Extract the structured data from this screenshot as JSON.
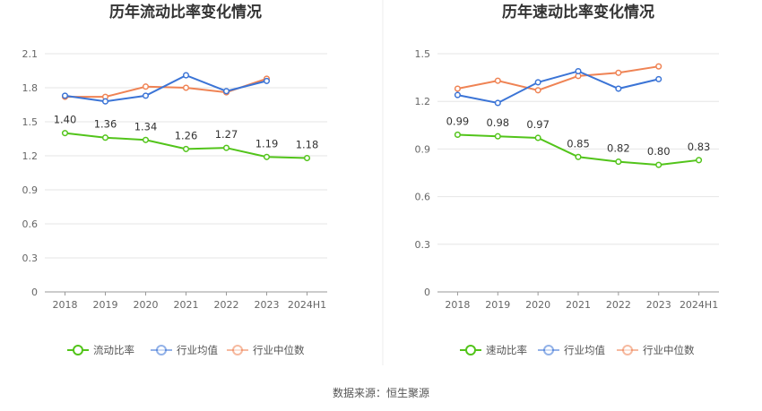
{
  "source": "数据来源：恒生聚源",
  "colors": {
    "company": "#52c41a",
    "industry_avg": "#3b74d6",
    "industry_median": "#ef8354"
  },
  "chart_data": [
    {
      "type": "line",
      "title": "历年流动比率变化情况",
      "categories": [
        "2018",
        "2019",
        "2020",
        "2021",
        "2022",
        "2023",
        "2024H1"
      ],
      "yticks": [
        "0",
        "0.3",
        "0.6",
        "0.9",
        "1.2",
        "1.5",
        "1.8",
        "2.1"
      ],
      "ylim": [
        0,
        2.1
      ],
      "grid": true,
      "legend_position": "bottom",
      "series": [
        {
          "name": "流动比率",
          "color": "#52c41a",
          "values": [
            1.4,
            1.36,
            1.34,
            1.26,
            1.27,
            1.19,
            1.18
          ],
          "labels": [
            "1.40",
            "1.36",
            "1.34",
            "1.26",
            "1.27",
            "1.19",
            "1.18"
          ]
        },
        {
          "name": "行业均值",
          "color": "#3b74d6",
          "values": [
            1.73,
            1.68,
            1.73,
            1.91,
            1.77,
            1.86,
            null
          ]
        },
        {
          "name": "行业中位数",
          "color": "#ef8354",
          "values": [
            1.72,
            1.72,
            1.81,
            1.8,
            1.76,
            1.88,
            null
          ]
        }
      ]
    },
    {
      "type": "line",
      "title": "历年速动比率变化情况",
      "categories": [
        "2018",
        "2019",
        "2020",
        "2021",
        "2022",
        "2023",
        "2024H1"
      ],
      "yticks": [
        "0",
        "0.3",
        "0.6",
        "0.9",
        "1.2",
        "1.5"
      ],
      "ylim": [
        0,
        1.5
      ],
      "grid": true,
      "legend_position": "bottom",
      "series": [
        {
          "name": "速动比率",
          "color": "#52c41a",
          "values": [
            0.99,
            0.98,
            0.97,
            0.85,
            0.82,
            0.8,
            0.83
          ],
          "labels": [
            "0.99",
            "0.98",
            "0.97",
            "0.85",
            "0.82",
            "0.80",
            "0.83"
          ]
        },
        {
          "name": "行业均值",
          "color": "#3b74d6",
          "values": [
            1.24,
            1.19,
            1.32,
            1.39,
            1.28,
            1.34,
            null
          ]
        },
        {
          "name": "行业中位数",
          "color": "#ef8354",
          "values": [
            1.28,
            1.33,
            1.27,
            1.36,
            1.38,
            1.42,
            null
          ]
        }
      ]
    }
  ]
}
